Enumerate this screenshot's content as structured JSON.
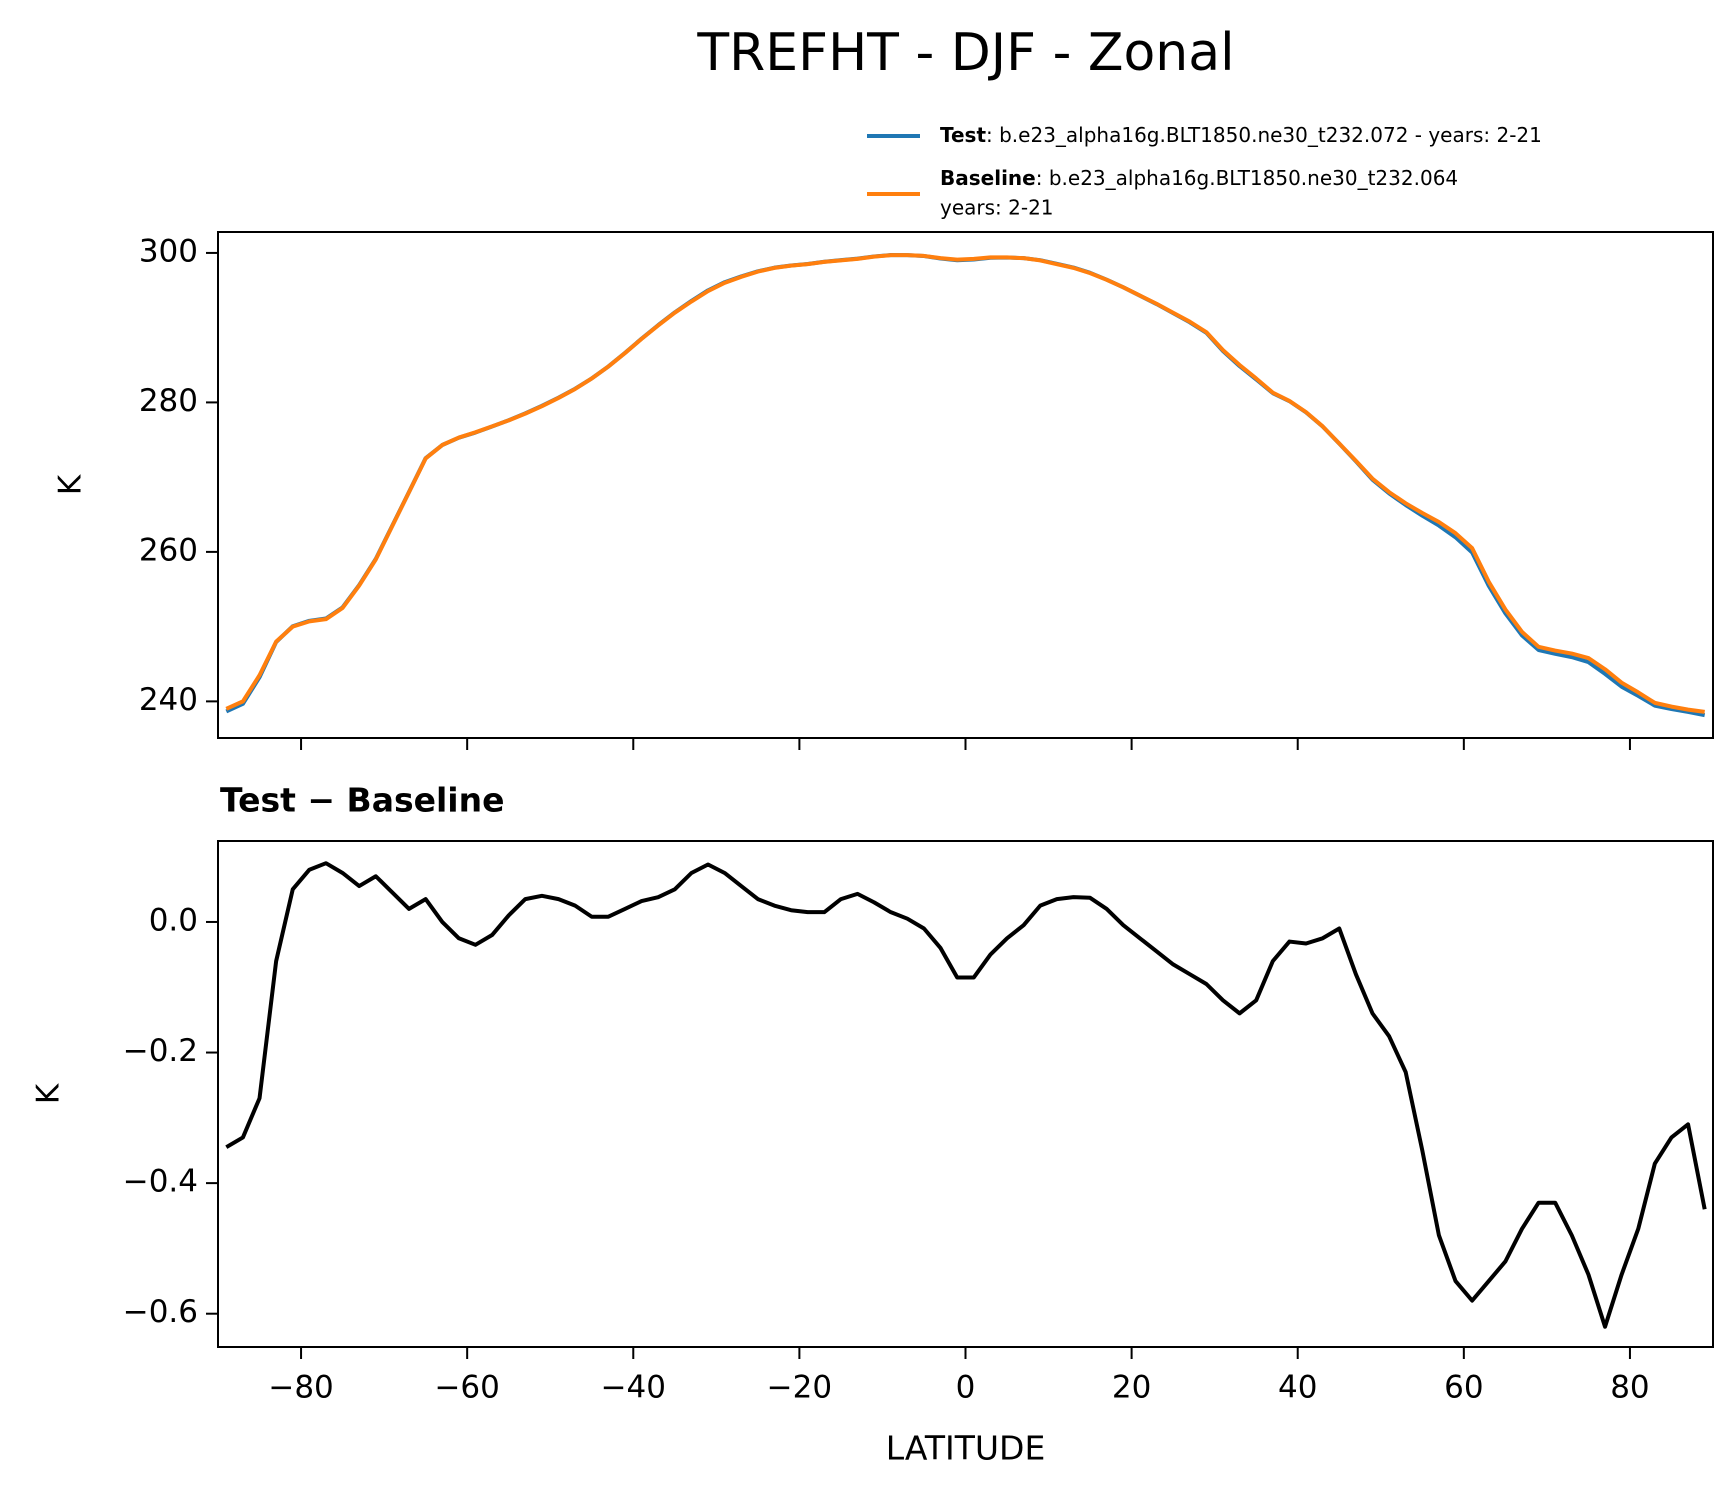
{
  "title": "TREFHT - DJF - Zonal",
  "chart_data": [
    {
      "type": "line",
      "ylabel": "K",
      "x": [
        -89,
        -87,
        -85,
        -83,
        -81,
        -79,
        -77,
        -75,
        -73,
        -71,
        -69,
        -67,
        -65,
        -63,
        -61,
        -59,
        -57,
        -55,
        -53,
        -51,
        -49,
        -47,
        -45,
        -43,
        -41,
        -39,
        -37,
        -35,
        -33,
        -31,
        -29,
        -27,
        -25,
        -23,
        -21,
        -19,
        -17,
        -15,
        -13,
        -11,
        -9,
        -7,
        -5,
        -3,
        -1,
        1,
        3,
        5,
        7,
        9,
        11,
        13,
        15,
        17,
        19,
        21,
        23,
        25,
        27,
        29,
        31,
        33,
        35,
        37,
        39,
        41,
        43,
        45,
        47,
        49,
        51,
        53,
        55,
        57,
        59,
        61,
        63,
        65,
        67,
        69,
        71,
        73,
        75,
        77,
        79,
        81,
        83,
        85,
        87,
        89
      ],
      "series": [
        {
          "name": "Test",
          "label": ": b.e23_alpha16g.BLT1850.ne30_t232.072 - years: 2-21",
          "color": "#1f77b4",
          "values": [
            238.66,
            239.67,
            243.23,
            247.94,
            250.05,
            250.78,
            251.09,
            252.58,
            255.56,
            259.07,
            263.55,
            268.02,
            272.54,
            274.3,
            275.28,
            275.97,
            276.78,
            277.61,
            278.54,
            279.54,
            280.64,
            281.83,
            283.21,
            284.81,
            286.62,
            288.53,
            290.34,
            292.05,
            293.58,
            294.99,
            296.08,
            296.86,
            297.54,
            298.03,
            298.32,
            298.52,
            298.82,
            299.04,
            299.24,
            299.53,
            299.72,
            299.71,
            299.59,
            299.26,
            299.02,
            299.12,
            299.35,
            299.38,
            299.3,
            299.03,
            298.54,
            298.04,
            297.34,
            296.42,
            295.4,
            294.28,
            293.16,
            291.94,
            290.72,
            289.31,
            286.88,
            284.86,
            283.08,
            281.24,
            280.17,
            278.67,
            276.78,
            274.49,
            272.12,
            269.66,
            267.83,
            266.27,
            264.85,
            263.52,
            261.95,
            259.92,
            255.45,
            251.78,
            248.83,
            246.87,
            246.37,
            245.92,
            245.26,
            243.68,
            241.96,
            240.73,
            239.43,
            238.97,
            238.59,
            238.16
          ]
        },
        {
          "name": "Baseline",
          "label": [
            ": b.e23_alpha16g.BLT1850.ne30_t232.064",
            "years: 2-21"
          ],
          "color": "#ff7f0e",
          "values": [
            239,
            240,
            243.5,
            248,
            250,
            250.7,
            251,
            252.5,
            255.5,
            259,
            263.5,
            268,
            272.5,
            274.3,
            275.3,
            276,
            276.8,
            277.6,
            278.5,
            279.5,
            280.6,
            281.8,
            283.2,
            284.8,
            286.6,
            288.5,
            290.3,
            292,
            293.5,
            294.9,
            296,
            296.8,
            297.5,
            298,
            298.3,
            298.5,
            298.8,
            299,
            299.2,
            299.5,
            299.7,
            299.7,
            299.6,
            299.3,
            299.1,
            299.2,
            299.4,
            299.4,
            299.3,
            299,
            298.5,
            298,
            297.3,
            296.4,
            295.4,
            294.3,
            293.2,
            292,
            290.8,
            289.4,
            287,
            285,
            283.2,
            281.3,
            280.2,
            278.7,
            276.8,
            274.5,
            272.2,
            269.8,
            268,
            266.5,
            265.2,
            264,
            262.5,
            260.5,
            256,
            252.3,
            249.3,
            247.3,
            246.8,
            246.4,
            245.8,
            244.3,
            242.5,
            241.2,
            239.8,
            239.3,
            238.9,
            238.6
          ]
        }
      ],
      "xlim": [
        -90,
        90
      ],
      "xticks": [
        -80,
        -60,
        -40,
        -20,
        0,
        20,
        40,
        60,
        80
      ],
      "ylim": [
        235.1,
        302.8
      ],
      "yticks": [
        240,
        260,
        280,
        300
      ]
    },
    {
      "type": "line",
      "title": "Test − Baseline",
      "xlabel": "LATITUDE",
      "ylabel": "K",
      "x": [
        -89,
        -87,
        -85,
        -83,
        -81,
        -79,
        -77,
        -75,
        -73,
        -71,
        -69,
        -67,
        -65,
        -63,
        -61,
        -59,
        -57,
        -55,
        -53,
        -51,
        -49,
        -47,
        -45,
        -43,
        -41,
        -39,
        -37,
        -35,
        -33,
        -31,
        -29,
        -27,
        -25,
        -23,
        -21,
        -19,
        -17,
        -15,
        -13,
        -11,
        -9,
        -7,
        -5,
        -3,
        -1,
        1,
        3,
        5,
        7,
        9,
        11,
        13,
        15,
        17,
        19,
        21,
        23,
        25,
        27,
        29,
        31,
        33,
        35,
        37,
        39,
        41,
        43,
        45,
        47,
        49,
        51,
        53,
        55,
        57,
        59,
        61,
        63,
        65,
        67,
        69,
        71,
        73,
        75,
        77,
        79,
        81,
        83,
        85,
        87,
        89
      ],
      "series": [
        {
          "color": "#000000",
          "values": [
            -0.345,
            -0.33,
            -0.27,
            -0.06,
            0.05,
            0.08,
            0.09,
            0.075,
            0.055,
            0.07,
            0.045,
            0.02,
            0.035,
            0.0,
            -0.025,
            -0.035,
            -0.02,
            0.01,
            0.035,
            0.04,
            0.035,
            0.025,
            0.008,
            0.008,
            0.02,
            0.032,
            0.038,
            0.05,
            0.075,
            0.088,
            0.075,
            0.055,
            0.035,
            0.025,
            0.018,
            0.015,
            0.015,
            0.035,
            0.043,
            0.03,
            0.015,
            0.005,
            -0.01,
            -0.04,
            -0.085,
            -0.085,
            -0.05,
            -0.025,
            -0.005,
            0.025,
            0.035,
            0.038,
            0.037,
            0.02,
            -0.005,
            -0.025,
            -0.045,
            -0.065,
            -0.08,
            -0.095,
            -0.12,
            -0.14,
            -0.12,
            -0.06,
            -0.03,
            -0.033,
            -0.025,
            -0.01,
            -0.08,
            -0.14,
            -0.175,
            -0.23,
            -0.35,
            -0.48,
            -0.55,
            -0.58,
            -0.55,
            -0.52,
            -0.47,
            -0.43,
            -0.43,
            -0.48,
            -0.54,
            -0.62,
            -0.54,
            -0.47,
            -0.37,
            -0.33,
            -0.31,
            -0.44
          ]
        }
      ],
      "xlim": [
        -90,
        90
      ],
      "xticks": [
        {
          "value": -80,
          "label": "−80"
        },
        {
          "value": -60,
          "label": "−60"
        },
        {
          "value": -40,
          "label": "−40"
        },
        {
          "value": -20,
          "label": "−20"
        },
        0,
        20,
        40,
        60,
        80
      ],
      "ylim": [
        -0.651,
        0.124
      ],
      "yticks": [
        {
          "value": -0.6,
          "label": "−0.6"
        },
        {
          "value": -0.4,
          "label": "−0.4"
        },
        {
          "value": -0.2,
          "label": "−0.2"
        },
        {
          "value": 0,
          "label": "0.0"
        }
      ]
    }
  ]
}
